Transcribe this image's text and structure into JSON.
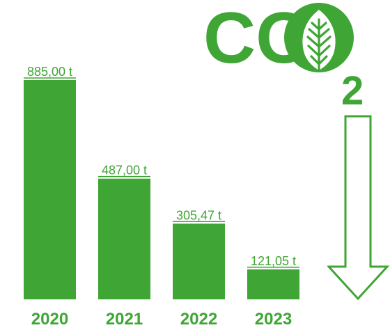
{
  "chart_data": {
    "type": "bar",
    "categories": [
      "2020",
      "2021",
      "2022",
      "2023"
    ],
    "values": [
      885.0,
      487.0,
      305.47,
      121.05
    ],
    "data_labels": [
      "885,00 t",
      "487,00 t",
      "305,47 t",
      "121,05 t"
    ],
    "title": "",
    "xlabel": "",
    "ylabel": "",
    "ylim": [
      0,
      885
    ],
    "grid": false,
    "legend": "none"
  },
  "logo": {
    "text": "CO",
    "subscript": "2",
    "icon": "leaf-icon"
  },
  "arrow": {
    "icon": "arrow-down-icon"
  },
  "colors": {
    "accent": "#3fa535",
    "background": "#ffffff"
  }
}
